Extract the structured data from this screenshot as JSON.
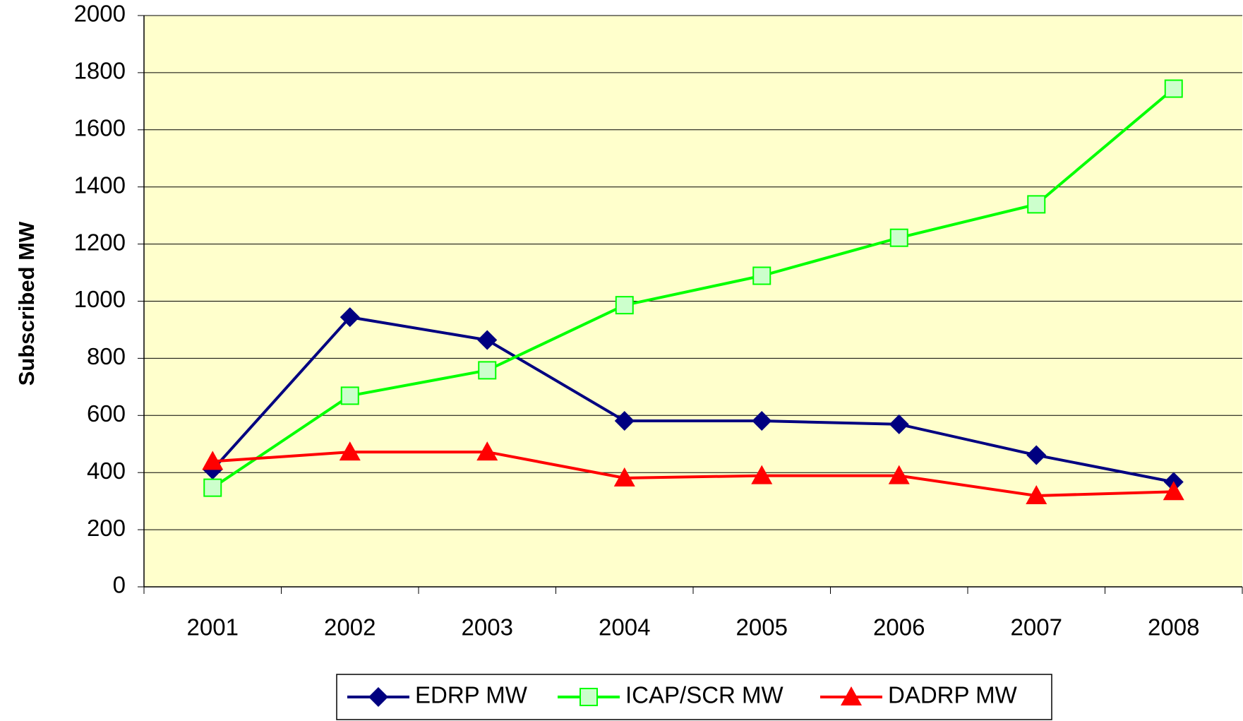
{
  "chart_data": {
    "type": "line",
    "y_label": "Subscribed MW",
    "categories": [
      "2001",
      "2002",
      "2003",
      "2004",
      "2005",
      "2006",
      "2007",
      "2008"
    ],
    "series": [
      {
        "name": "EDRP MW",
        "color": "#000080",
        "marker": "diamond",
        "values": [
          410,
          944,
          864,
          581,
          581,
          569,
          461,
          367
        ]
      },
      {
        "name": "ICAP/SCR MW",
        "color": "#00ff00",
        "marker": "square",
        "values": [
          347,
          669,
          758,
          986,
          1089,
          1222,
          1339,
          1744
        ]
      },
      {
        "name": "DADRP MW",
        "color": "#ff0000",
        "marker": "triangle",
        "values": [
          439,
          472,
          472,
          381,
          389,
          389,
          319,
          333
        ]
      }
    ],
    "ylim": [
      0,
      2000
    ],
    "yticks": [
      0,
      200,
      400,
      600,
      800,
      1000,
      1200,
      1400,
      1600,
      1800,
      2000
    ],
    "grid": true,
    "plot_background": "#ffffcc",
    "legend": "bottom"
  }
}
